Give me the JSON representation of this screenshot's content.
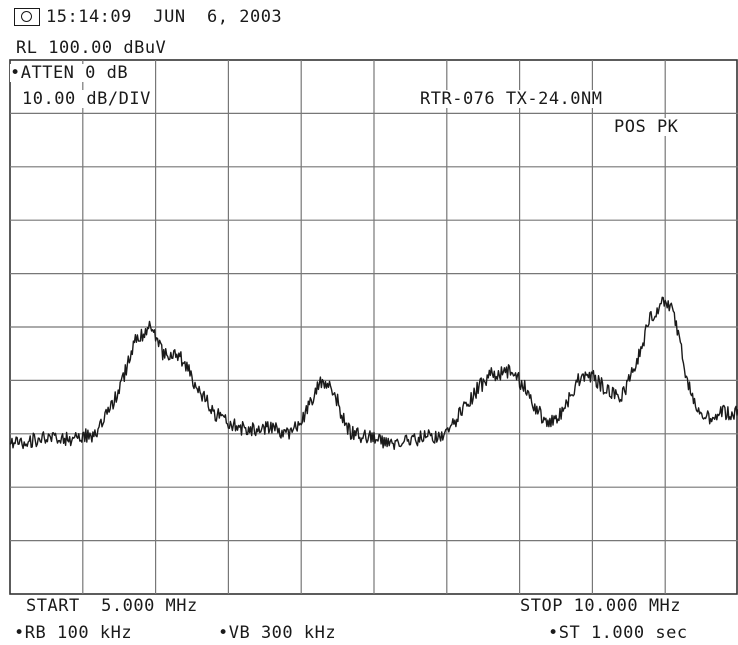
{
  "header": {
    "timestamp": "15:14:09  JUN  6, 2003",
    "ref_level": "RL 100.00 dBuV",
    "atten": "•ATTEN 0 dB",
    "scale": "10.00 dB/DIV",
    "trace_label": "RTR-076 TX-24.0NM",
    "detector": "POS PK"
  },
  "footer": {
    "start": "START  5.000 MHz",
    "stop": "STOP 10.000 MHz",
    "rbw": "•RB 100 kHz",
    "vbw": "•VB 300 kHz",
    "sweep": "•ST 1.000 sec"
  },
  "colors": {
    "trace": "#1a1a1a",
    "grid": "#777777",
    "background": "#ffffff"
  },
  "icons": {
    "logo": "analyzer-logo-icon"
  },
  "chart_data": {
    "type": "line",
    "title": "",
    "xlabel": "",
    "ylabel": "",
    "xlim": [
      5.0,
      10.0
    ],
    "ylim": [
      0,
      100
    ],
    "x_unit": "MHz",
    "y_unit": "dBuV",
    "grid": true,
    "divisions": {
      "x": 10,
      "y": 10
    },
    "series": [
      {
        "x": [
          5.0,
          5.2,
          5.4,
          5.6,
          5.75,
          5.85,
          5.95,
          6.0,
          6.05,
          6.1,
          6.15,
          6.2,
          6.3,
          6.4,
          6.5,
          6.6,
          6.7,
          6.8,
          6.9,
          7.0,
          7.1,
          7.15,
          7.2,
          7.25,
          7.3,
          7.35,
          7.5,
          7.6,
          7.8,
          8.0,
          8.1,
          8.2,
          8.3,
          8.45,
          8.55,
          8.6,
          8.7,
          8.8,
          8.9,
          9.0,
          9.1,
          9.2,
          9.3,
          9.4,
          9.5,
          9.55,
          9.6,
          9.65,
          9.7,
          9.75,
          9.8,
          9.9,
          10.0
        ],
        "y": [
          28,
          29,
          29,
          30,
          38,
          47,
          50,
          48,
          45,
          44,
          45,
          43,
          38,
          34,
          32,
          31,
          31,
          31,
          30,
          32,
          38,
          40,
          39,
          36,
          32,
          30,
          29,
          28,
          29,
          30,
          34,
          38,
          41,
          42,
          38,
          35,
          32,
          34,
          40,
          41,
          38,
          37,
          43,
          52,
          55,
          53,
          47,
          40,
          36,
          34,
          33,
          34,
          34
        ]
      }
    ]
  }
}
